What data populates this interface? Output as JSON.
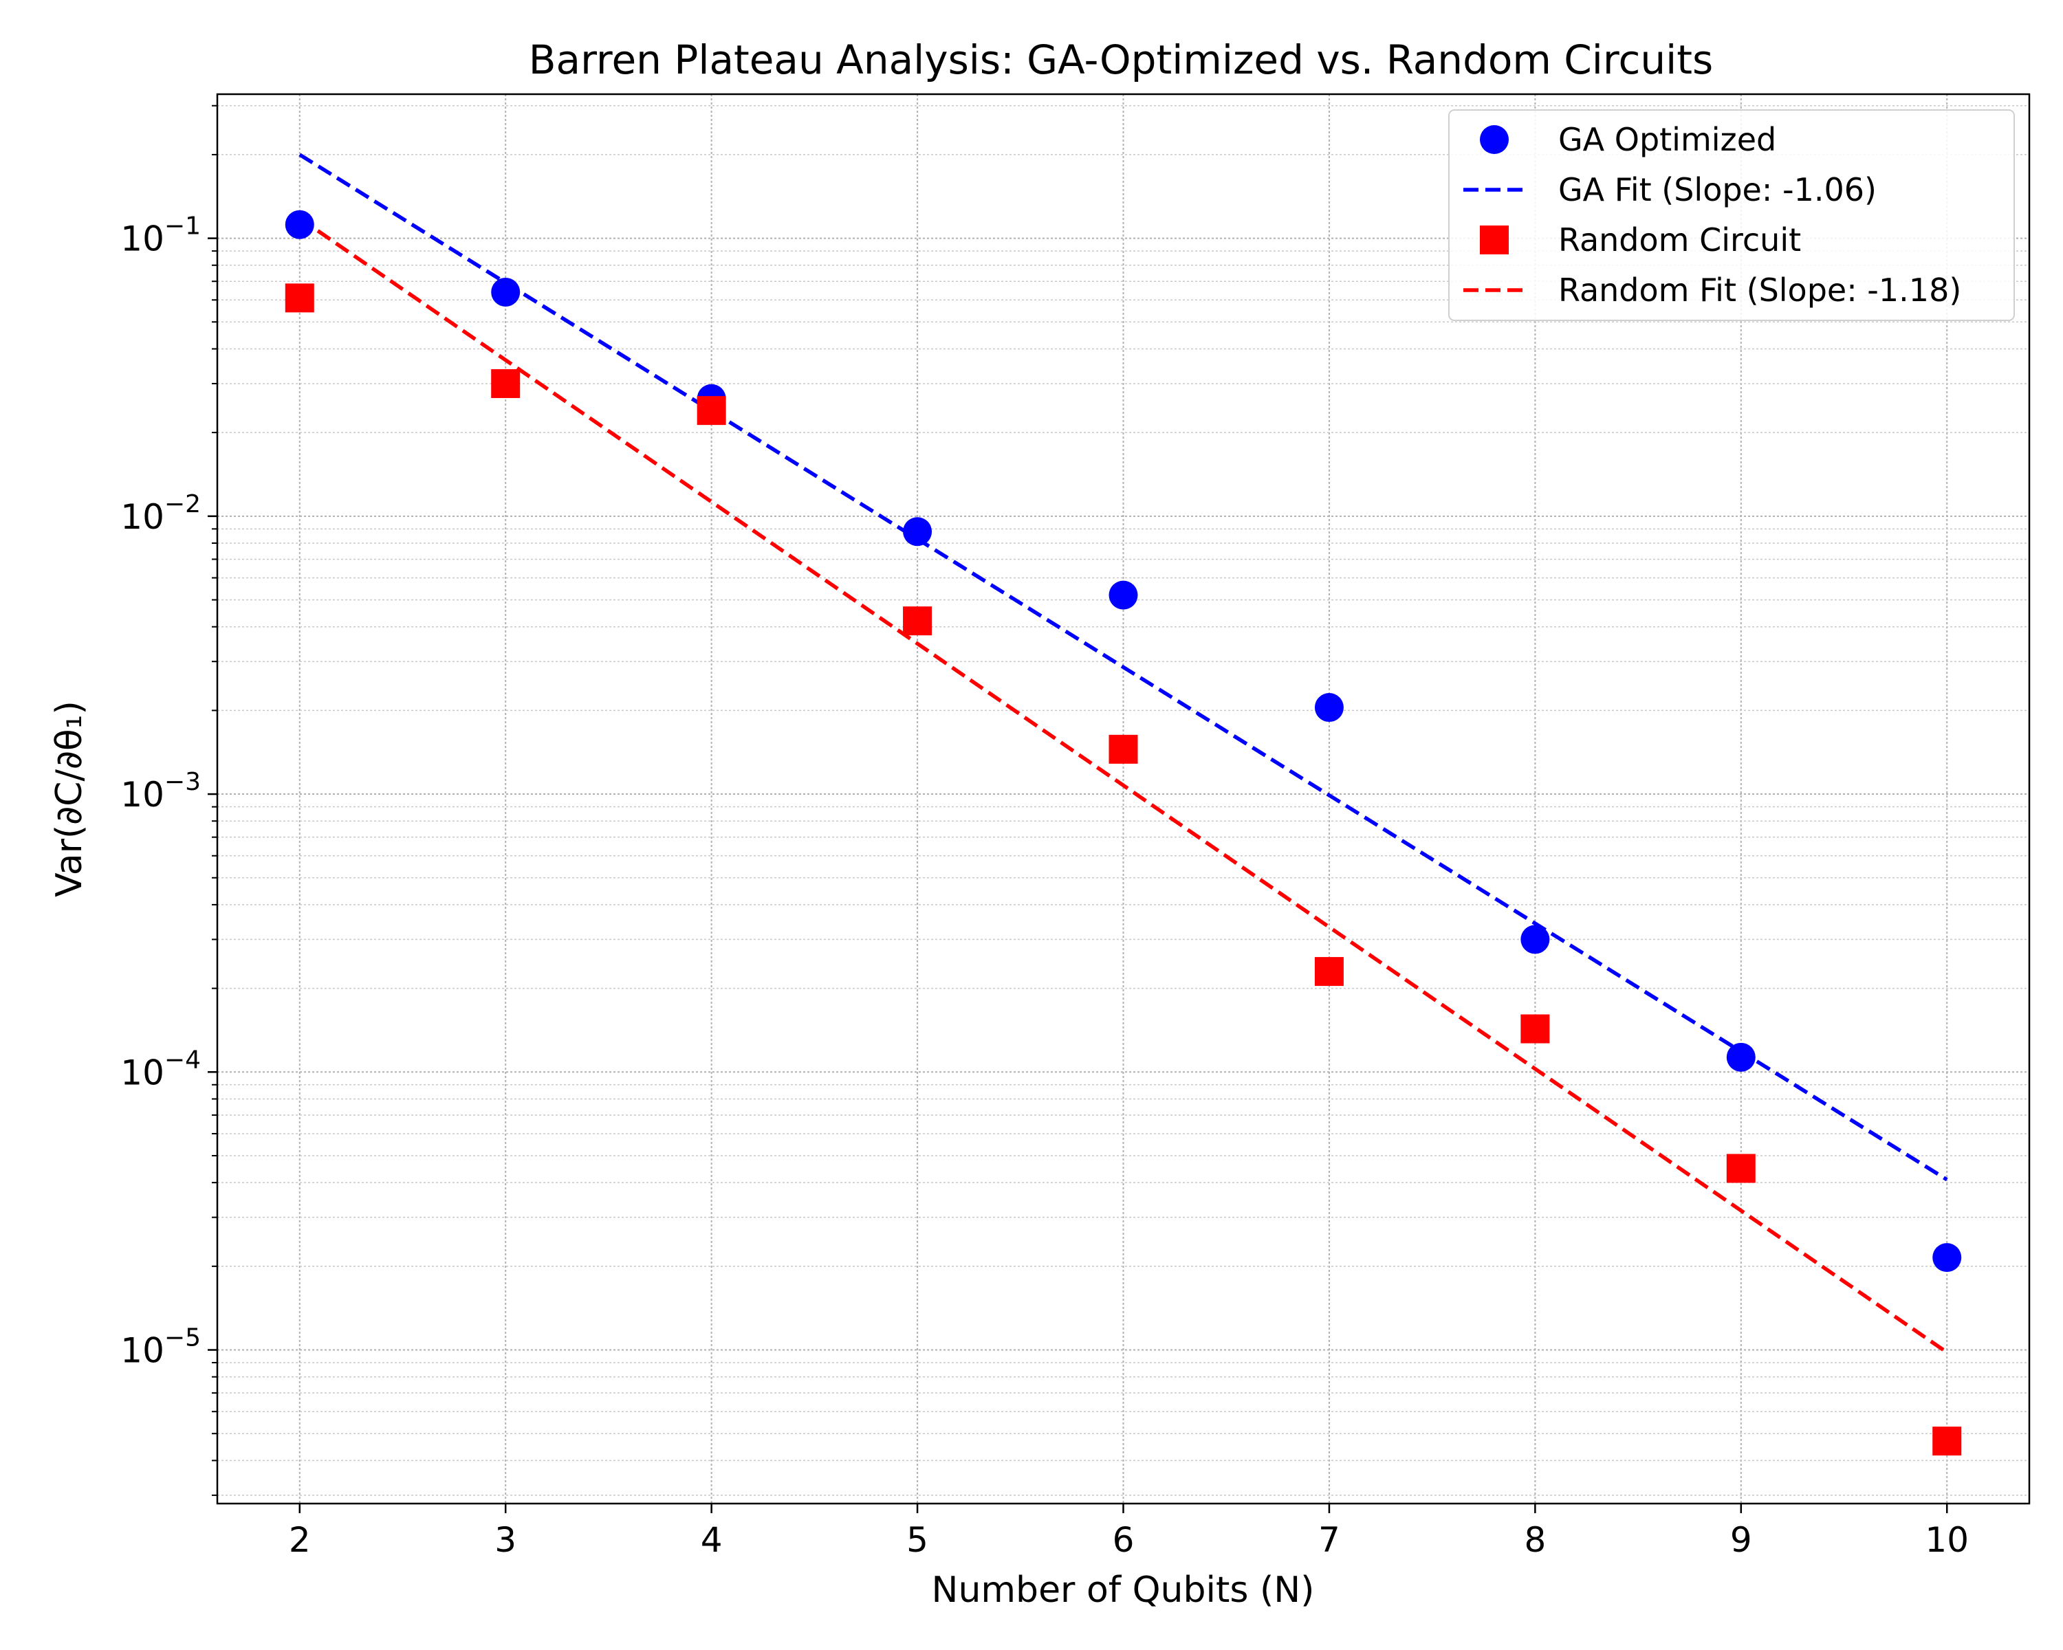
{
  "chart_data": {
    "type": "scatter",
    "title": "Barren Plateau Analysis: GA-Optimized vs. Random Circuits",
    "xlabel": "Number of Qubits (N)",
    "ylabel": "Var(∂C/∂θ₁)",
    "xlim": [
      1.6,
      10.4
    ],
    "ylim": [
      2.8e-06,
      0.33
    ],
    "yscale": "log",
    "grid": true,
    "legend_position": "top-right",
    "x_ticks": [
      2,
      3,
      4,
      5,
      6,
      7,
      8,
      9,
      10
    ],
    "y_ticks": [
      {
        "value": 0.1,
        "base": "10",
        "exp": "−1"
      },
      {
        "value": 0.01,
        "base": "10",
        "exp": "−2"
      },
      {
        "value": 0.001,
        "base": "10",
        "exp": "−3"
      },
      {
        "value": 0.0001,
        "base": "10",
        "exp": "−4"
      },
      {
        "value": 1e-05,
        "base": "10",
        "exp": "−5"
      }
    ],
    "series": [
      {
        "name": "GA Optimized",
        "kind": "scatter",
        "marker": "circle",
        "color": "#0000ff",
        "x": [
          2,
          3,
          4,
          5,
          6,
          7,
          8,
          9,
          10
        ],
        "y": [
          0.112,
          0.064,
          0.0265,
          0.0088,
          0.0052,
          0.00205,
          0.0003,
          0.000113,
          2.15e-05
        ]
      },
      {
        "name": "GA Fit (Slope: -1.06)",
        "kind": "line",
        "dash": true,
        "color": "#0000ff",
        "x": [
          2,
          10
        ],
        "y": [
          0.2,
          4.1e-05
        ]
      },
      {
        "name": "Random Circuit",
        "kind": "scatter",
        "marker": "square",
        "color": "#ff0000",
        "x": [
          2,
          3,
          4,
          5,
          6,
          7,
          8,
          9,
          10
        ],
        "y": [
          0.061,
          0.03,
          0.024,
          0.0042,
          0.00145,
          0.00023,
          0.000143,
          4.5e-05,
          4.7e-06
        ]
      },
      {
        "name": "Random Fit (Slope: -1.18)",
        "kind": "line",
        "dash": true,
        "color": "#ff0000",
        "x": [
          2,
          10
        ],
        "y": [
          0.118,
          9.8e-06
        ]
      }
    ]
  }
}
